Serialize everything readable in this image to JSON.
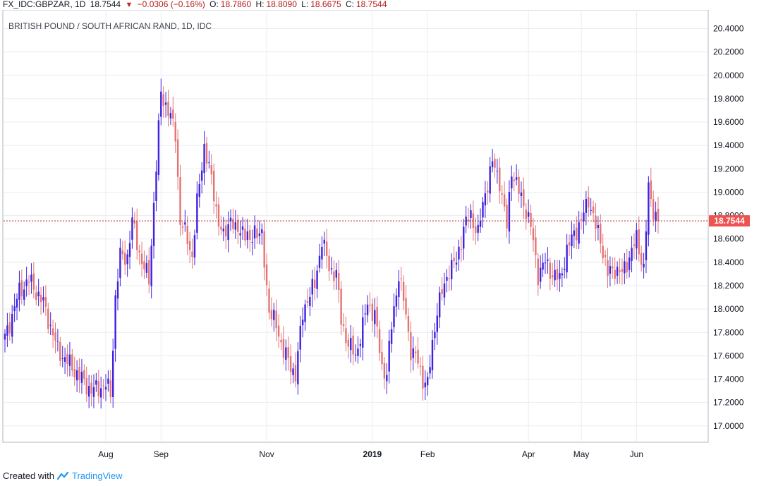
{
  "header": {
    "symbol": "FX_IDC:GBPZAR, 1D",
    "last": "18.7544",
    "change": "−0.0306 (−0.16%)",
    "open_label": "O:",
    "open": "18.7860",
    "high_label": "H:",
    "high": "18.8090",
    "low_label": "L:",
    "low": "18.6675",
    "close_label": "C:",
    "close": "18.7544"
  },
  "footer": {
    "created_with": "Created with",
    "brand": "TradingView"
  },
  "colors": {
    "up": "#3d22e0",
    "down": "#e57373",
    "grid": "#e9ecf1",
    "price_tag": "#ef5350",
    "price_line": "#b71c1c"
  },
  "chart_data": {
    "type": "candlestick",
    "title": "BRITISH POUND / SOUTH AFRICAN RAND, 1D, IDC",
    "ylim": [
      16.86,
      20.56
    ],
    "yticks": [
      "20.4000",
      "20.2000",
      "20.0000",
      "19.8000",
      "19.6000",
      "19.4000",
      "19.2000",
      "19.0000",
      "18.8000",
      "18.6000",
      "18.4000",
      "18.2000",
      "18.0000",
      "17.8000",
      "17.6000",
      "17.4000",
      "17.2000",
      "17.0000"
    ],
    "xticks": [
      {
        "label": "Aug",
        "index": 42,
        "bold": false
      },
      {
        "label": "Sep",
        "index": 65,
        "bold": false
      },
      {
        "label": "Nov",
        "index": 109,
        "bold": false
      },
      {
        "label": "2019",
        "index": 153,
        "bold": true
      },
      {
        "label": "Feb",
        "index": 176,
        "bold": false
      },
      {
        "label": "Apr",
        "index": 218,
        "bold": false
      },
      {
        "label": "May",
        "index": 240,
        "bold": false
      },
      {
        "label": "Jun",
        "index": 263,
        "bold": false
      }
    ],
    "last_price": 18.7544,
    "last_price_label": "18.7544",
    "anchors": [
      [
        0,
        17.75
      ],
      [
        6,
        18.15
      ],
      [
        10,
        18.25
      ],
      [
        16,
        18.05
      ],
      [
        22,
        17.65
      ],
      [
        30,
        17.45
      ],
      [
        36,
        17.3
      ],
      [
        42,
        17.35
      ],
      [
        44,
        17.28
      ],
      [
        46,
        18.1
      ],
      [
        48,
        18.45
      ],
      [
        51,
        18.45
      ],
      [
        53,
        18.75
      ],
      [
        57,
        18.4
      ],
      [
        60,
        18.25
      ],
      [
        62,
        18.9
      ],
      [
        65,
        19.85
      ],
      [
        68,
        19.7
      ],
      [
        71,
        19.5
      ],
      [
        73,
        18.75
      ],
      [
        76,
        18.6
      ],
      [
        78,
        18.45
      ],
      [
        80,
        18.9
      ],
      [
        83,
        19.4
      ],
      [
        86,
        19.1
      ],
      [
        89,
        18.75
      ],
      [
        91,
        18.6
      ],
      [
        94,
        18.8
      ],
      [
        96,
        18.65
      ],
      [
        99,
        18.7
      ],
      [
        102,
        18.55
      ],
      [
        104,
        18.7
      ],
      [
        107,
        18.6
      ],
      [
        110,
        18.0
      ],
      [
        113,
        17.85
      ],
      [
        116,
        17.65
      ],
      [
        119,
        17.5
      ],
      [
        121,
        17.45
      ],
      [
        124,
        17.95
      ],
      [
        126,
        18.1
      ],
      [
        129,
        18.2
      ],
      [
        132,
        18.6
      ],
      [
        135,
        18.35
      ],
      [
        138,
        18.3
      ],
      [
        140,
        17.9
      ],
      [
        143,
        17.7
      ],
      [
        146,
        17.6
      ],
      [
        149,
        17.85
      ],
      [
        151,
        18.05
      ],
      [
        154,
        17.95
      ],
      [
        157,
        17.5
      ],
      [
        159,
        17.45
      ],
      [
        161,
        17.85
      ],
      [
        164,
        18.3
      ],
      [
        167,
        17.95
      ],
      [
        169,
        17.65
      ],
      [
        172,
        17.55
      ],
      [
        174,
        17.4
      ],
      [
        176,
        17.35
      ],
      [
        178,
        17.7
      ],
      [
        180,
        18.0
      ],
      [
        183,
        18.2
      ],
      [
        185,
        18.35
      ],
      [
        188,
        18.4
      ],
      [
        191,
        18.7
      ],
      [
        194,
        18.8
      ],
      [
        197,
        18.65
      ],
      [
        200,
        19.0
      ],
      [
        203,
        19.25
      ],
      [
        206,
        19.1
      ],
      [
        209,
        18.7
      ],
      [
        211,
        19.2
      ],
      [
        214,
        19.0
      ],
      [
        217,
        18.85
      ],
      [
        219,
        18.7
      ],
      [
        222,
        18.3
      ],
      [
        225,
        18.4
      ],
      [
        228,
        18.3
      ],
      [
        231,
        18.25
      ],
      [
        234,
        18.5
      ],
      [
        237,
        18.65
      ],
      [
        240,
        18.75
      ],
      [
        243,
        18.95
      ],
      [
        246,
        18.7
      ],
      [
        248,
        18.6
      ],
      [
        251,
        18.3
      ],
      [
        254,
        18.35
      ],
      [
        257,
        18.3
      ],
      [
        260,
        18.45
      ],
      [
        263,
        18.6
      ],
      [
        266,
        18.35
      ],
      [
        268,
        19.02
      ],
      [
        270,
        18.85
      ],
      [
        272,
        18.7544
      ]
    ]
  }
}
